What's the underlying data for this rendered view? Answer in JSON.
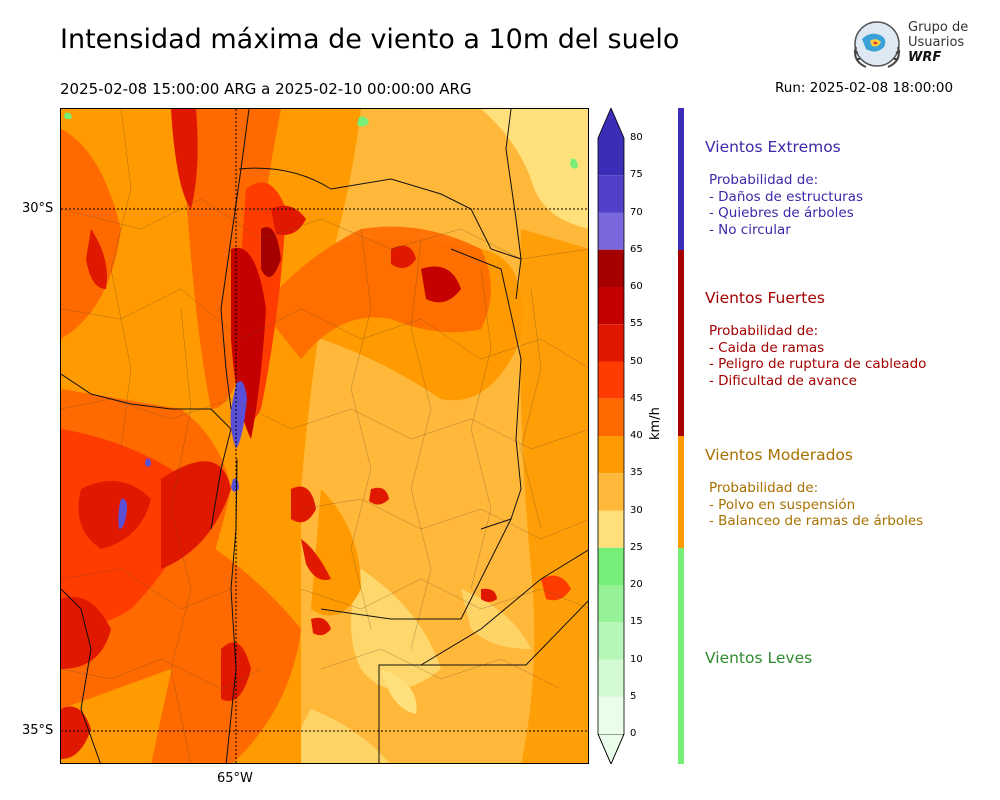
{
  "header": {
    "title": "Intensidad máxima de viento a 10m del suelo",
    "period": "2025-02-08 15:00:00 ARG  a  2025-02-10 00:00:00 ARG",
    "run": "Run: 2025-02-08 18:00:00"
  },
  "logo": {
    "line1": "Grupo de",
    "line2": "Usuarios",
    "line3": "WRF"
  },
  "map": {
    "lat_labels": [
      "30°S",
      "35°S"
    ],
    "lon_labels": [
      "65°W"
    ],
    "mountain_high_winds_color": "#5a50d8"
  },
  "colorbar": {
    "unit": "km/h",
    "ticks": [
      "80",
      "75",
      "70",
      "65",
      "60",
      "55",
      "50",
      "45",
      "40",
      "35",
      "30",
      "25",
      "20",
      "15",
      "10",
      "5",
      "0"
    ],
    "levels": [
      {
        "from": 75,
        "to": 80,
        "color": "#3b2db5"
      },
      {
        "from": 70,
        "to": 75,
        "color": "#5340c8"
      },
      {
        "from": 65,
        "to": 70,
        "color": "#7a67dc"
      },
      {
        "from": 60,
        "to": 65,
        "color": "#a50000"
      },
      {
        "from": 55,
        "to": 60,
        "color": "#c40000"
      },
      {
        "from": 50,
        "to": 55,
        "color": "#e01800"
      },
      {
        "from": 45,
        "to": 50,
        "color": "#ff3c00"
      },
      {
        "from": 40,
        "to": 45,
        "color": "#ff6a00"
      },
      {
        "from": 35,
        "to": 40,
        "color": "#ff9a00"
      },
      {
        "from": 30,
        "to": 35,
        "color": "#ffb83a"
      },
      {
        "from": 25,
        "to": 30,
        "color": "#ffe07a"
      },
      {
        "from": 20,
        "to": 25,
        "color": "#77ee77"
      },
      {
        "from": 15,
        "to": 20,
        "color": "#96f296"
      },
      {
        "from": 10,
        "to": 15,
        "color": "#b6f6b6"
      },
      {
        "from": 5,
        "to": 10,
        "color": "#d2f9d2"
      },
      {
        "from": 0,
        "to": 5,
        "color": "#eafcea"
      }
    ]
  },
  "categories": [
    {
      "key": "extremos",
      "title": "Vientos Extremos",
      "color": "#3b2db5",
      "text_color": "#3a2aa8",
      "lines": [
        "Probabilidad de:",
        "- Daños de estructuras",
        "- Quiebres de árboles",
        "- No circular"
      ]
    },
    {
      "key": "fuertes",
      "title": "Vientos Fuertes",
      "color": "#a50000",
      "text_color": "#a30000",
      "lines": [
        "Probabilidad de:",
        "- Caida de ramas",
        "- Peligro de ruptura de cableado",
        "- Dificultad de avance"
      ]
    },
    {
      "key": "moderados",
      "title": "Vientos Moderados",
      "color": "#ff9a00",
      "text_color": "#a87000",
      "lines": [
        "Probabilidad de:",
        "- Polvo en suspensión",
        "- Balanceo de ramas de árboles"
      ]
    },
    {
      "key": "leves",
      "title": "Vientos Leves",
      "color": "#77ee77",
      "text_color": "#2e8b2e",
      "lines": []
    }
  ]
}
